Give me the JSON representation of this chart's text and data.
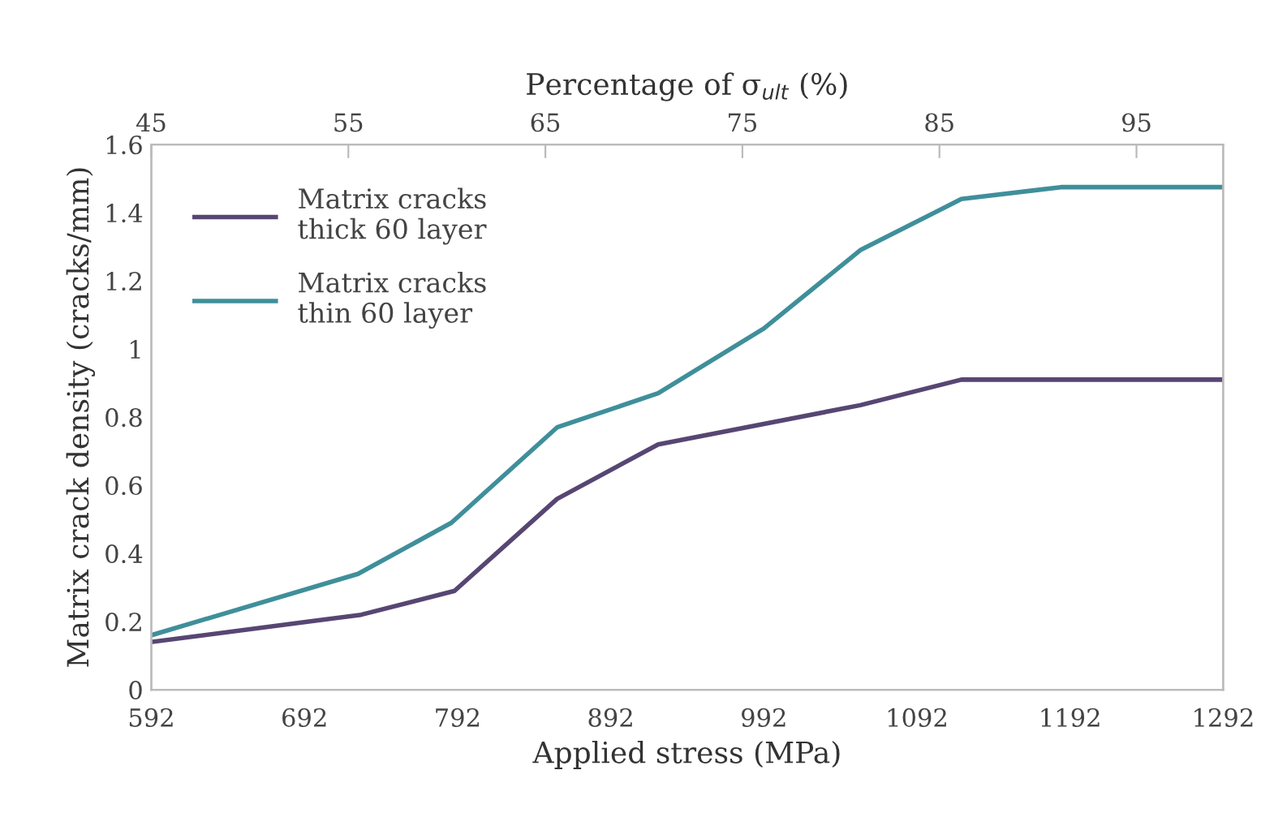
{
  "chart_data": {
    "type": "line",
    "xlabel": "Applied stress (MPa)",
    "ylabel": "Matrix crack density (cracks/mm)",
    "x2label": "Percentage of σ$_{ult}$ (%)",
    "xlim": [
      592,
      1292
    ],
    "xticks": [
      592,
      692,
      792,
      892,
      992,
      1092,
      1192,
      1292
    ],
    "x2lim": [
      45,
      99.4
    ],
    "x2ticks": [
      45,
      55,
      65,
      75,
      85,
      95
    ],
    "ylim": [
      0,
      1.6
    ],
    "yticks": [
      0,
      {
        "value": 0.2,
        "label": "0.2"
      },
      {
        "value": 0.4,
        "label": "0.4"
      },
      {
        "value": 0.6,
        "label": "0.6"
      },
      {
        "value": 0.8,
        "label": "0.8"
      },
      1,
      {
        "value": 1.2,
        "label": "1.2"
      },
      {
        "value": 1.4,
        "label": "1.4"
      },
      {
        "value": 1.6,
        "label": "1.6"
      }
    ],
    "grid": false,
    "legend": "top left",
    "marker": "none",
    "line_style": "solid",
    "series": [
      {
        "name": "Matrix cracks\nthick 60 layer",
        "color": "#574673",
        "x": [
          592,
          729,
          790,
          857,
          923,
          1055,
          1121,
          1292
        ],
        "values": [
          0.14,
          0.22,
          0.29,
          0.56,
          0.72,
          0.835,
          0.91,
          0.91
        ]
      },
      {
        "name": "Matrix cracks\nthin 60 layer",
        "color": "#3f8f9b",
        "x": [
          592,
          727,
          788,
          857,
          923,
          992,
          1055,
          1121,
          1186,
          1292
        ],
        "values": [
          0.16,
          0.34,
          0.49,
          0.77,
          0.87,
          1.06,
          1.29,
          1.44,
          1.475,
          1.475
        ]
      }
    ]
  }
}
